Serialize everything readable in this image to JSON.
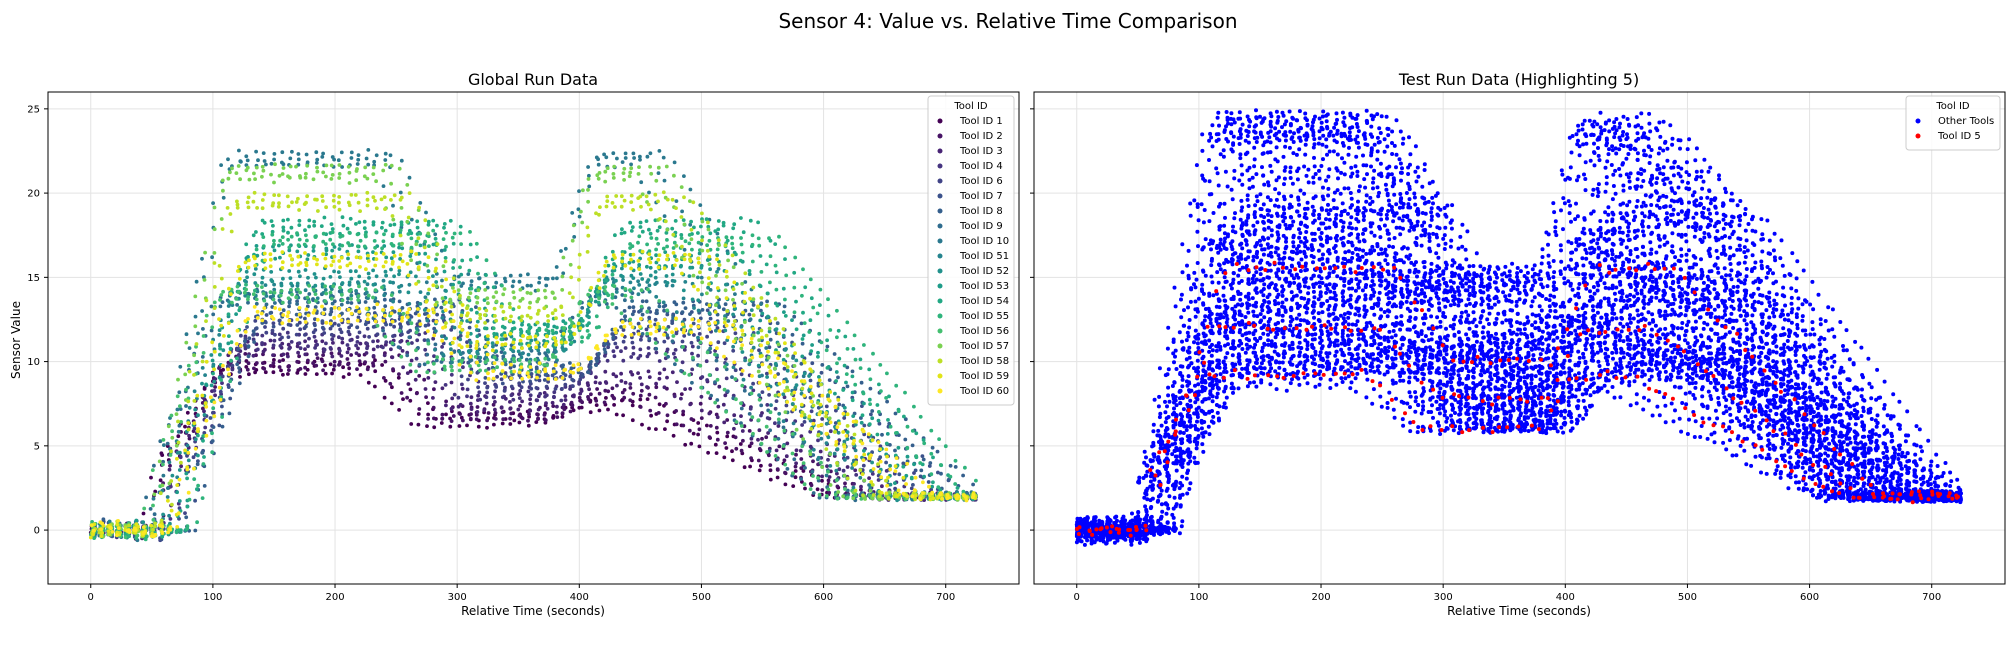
{
  "figure": {
    "suptitle": "Sensor 4: Value vs. Relative Time Comparison"
  },
  "chart_data": [
    {
      "type": "scatter",
      "title": "Global Run Data",
      "xlabel": "Relative Time (seconds)",
      "ylabel": "Sensor Value",
      "xlim": [
        -35,
        760
      ],
      "ylim": [
        -3.2,
        26
      ],
      "xticks": [
        0,
        100,
        200,
        300,
        400,
        500,
        600,
        700
      ],
      "yticks": [
        0,
        5,
        10,
        15,
        20,
        25
      ],
      "grid": true,
      "legend": {
        "title": "Tool ID",
        "placement": "upper-right",
        "entries": [
          {
            "name": "Tool ID 1",
            "color": "#440154"
          },
          {
            "name": "Tool ID 2",
            "color": "#471365"
          },
          {
            "name": "Tool ID 3",
            "color": "#482475"
          },
          {
            "name": "Tool ID 4",
            "color": "#463480"
          },
          {
            "name": "Tool ID 6",
            "color": "#414487"
          },
          {
            "name": "Tool ID 7",
            "color": "#3b528b"
          },
          {
            "name": "Tool ID 8",
            "color": "#355f8d"
          },
          {
            "name": "Tool ID 9",
            "color": "#2f6c8e"
          },
          {
            "name": "Tool ID 10",
            "color": "#2a788e"
          },
          {
            "name": "Tool ID 51",
            "color": "#25848e"
          },
          {
            "name": "Tool ID 52",
            "color": "#21918c"
          },
          {
            "name": "Tool ID 53",
            "color": "#1e9c89"
          },
          {
            "name": "Tool ID 54",
            "color": "#22a884"
          },
          {
            "name": "Tool ID 55",
            "color": "#2fb47c"
          },
          {
            "name": "Tool ID 56",
            "color": "#44bf70"
          },
          {
            "name": "Tool ID 57",
            "color": "#7ad151"
          },
          {
            "name": "Tool ID 58",
            "color": "#bddf26"
          },
          {
            "name": "Tool ID 59",
            "color": "#e1e418"
          },
          {
            "name": "Tool ID 60",
            "color": "#fde725"
          }
        ]
      },
      "profile_shape": {
        "x_breakpoints": [
          0,
          55,
          65,
          90,
          115,
          250,
          290,
          385,
          410,
          470,
          500,
          560,
          600,
          640,
          690,
          725
        ],
        "description": "flat near 0 until ~55 s, rises to plateau 10–22 by ~115 s, drops to 6–15 around 290–385 s, second plateau 10–22 around 410–500 s, declines to ~2 by ~650–725 s"
      },
      "series": [
        {
          "name": "Tool ID 1",
          "plateau1": 9.6,
          "valley": 6.6,
          "plateau2": 7.5
        },
        {
          "name": "Tool ID 2",
          "plateau1": 10.0,
          "valley": 6.9,
          "plateau2": 8.0
        },
        {
          "name": "Tool ID 3",
          "plateau1": 10.8,
          "valley": 7.6,
          "plateau2": 9.0
        },
        {
          "name": "Tool ID 4",
          "plateau1": 11.2,
          "valley": 8.2,
          "plateau2": 10.5
        },
        {
          "name": "Tool ID 6",
          "plateau1": 12.0,
          "valley": 8.8,
          "plateau2": 11.5
        },
        {
          "name": "Tool ID 7",
          "plateau1": 12.5,
          "valley": 9.2,
          "plateau2": 12.5
        },
        {
          "name": "Tool ID 8",
          "plateau1": 13.2,
          "valley": 9.6,
          "plateau2": 13.2
        },
        {
          "name": "Tool ID 9",
          "plateau1": 13.8,
          "valley": 10.2,
          "plateau2": 13.8
        },
        {
          "name": "Tool ID 10",
          "plateau1": 22.0,
          "valley": 14.7,
          "plateau2": 22.0
        },
        {
          "name": "Tool ID 51",
          "plateau1": 14.2,
          "valley": 10.5,
          "plateau2": 14.5
        },
        {
          "name": "Tool ID 52",
          "plateau1": 15.0,
          "valley": 11.0,
          "plateau2": 15.2
        },
        {
          "name": "Tool ID 53",
          "plateau1": 16.5,
          "valley": 11.8,
          "plateau2": 16.0
        },
        {
          "name": "Tool ID 54",
          "plateau1": 18.0,
          "valley": 12.0,
          "plateau2": 18.0
        },
        {
          "name": "Tool ID 55",
          "plateau1": 17.2,
          "valley": 11.5,
          "plateau2": 17.0
        },
        {
          "name": "Tool ID 56",
          "plateau1": 14.0,
          "valley": 9.8,
          "plateau2": 14.0
        },
        {
          "name": "Tool ID 57",
          "plateau1": 21.2,
          "valley": 13.8,
          "plateau2": 21.2
        },
        {
          "name": "Tool ID 58",
          "plateau1": 19.5,
          "valley": 12.8,
          "plateau2": 19.5
        },
        {
          "name": "Tool ID 59",
          "plateau1": 16.0,
          "valley": 11.2,
          "plateau2": 16.0
        },
        {
          "name": "Tool ID 60",
          "plateau1": 12.8,
          "valley": 9.4,
          "plateau2": 12.0
        }
      ]
    },
    {
      "type": "scatter",
      "title": "Test Run Data (Highlighting 5)",
      "xlabel": "Relative Time (seconds)",
      "xlim": [
        -35,
        760
      ],
      "ylim": [
        -3.2,
        26
      ],
      "xticks": [
        0,
        100,
        200,
        300,
        400,
        500,
        600,
        700
      ],
      "yticks": [
        0,
        5,
        10,
        15,
        20,
        25
      ],
      "grid": true,
      "legend": {
        "title": "Tool ID",
        "placement": "upper-right",
        "entries": [
          {
            "name": "Other Tools",
            "color": "#0000ff"
          },
          {
            "name": "Tool ID 5",
            "color": "#ff0000"
          }
        ]
      },
      "series": [
        {
          "name": "Other Tools",
          "color": "#0000ff",
          "range_low": [
            -1.5,
            3,
            9,
            6,
            6,
            1
          ],
          "range_high": [
            1.5,
            8,
            24.3,
            16,
            24.3,
            4
          ]
        },
        {
          "name": "Tool ID 5",
          "color": "#ff0000",
          "range_low": [
            -1,
            3,
            9,
            6,
            6,
            1
          ],
          "range_high": [
            1,
            6,
            16,
            10,
            16,
            3
          ]
        }
      ]
    }
  ]
}
